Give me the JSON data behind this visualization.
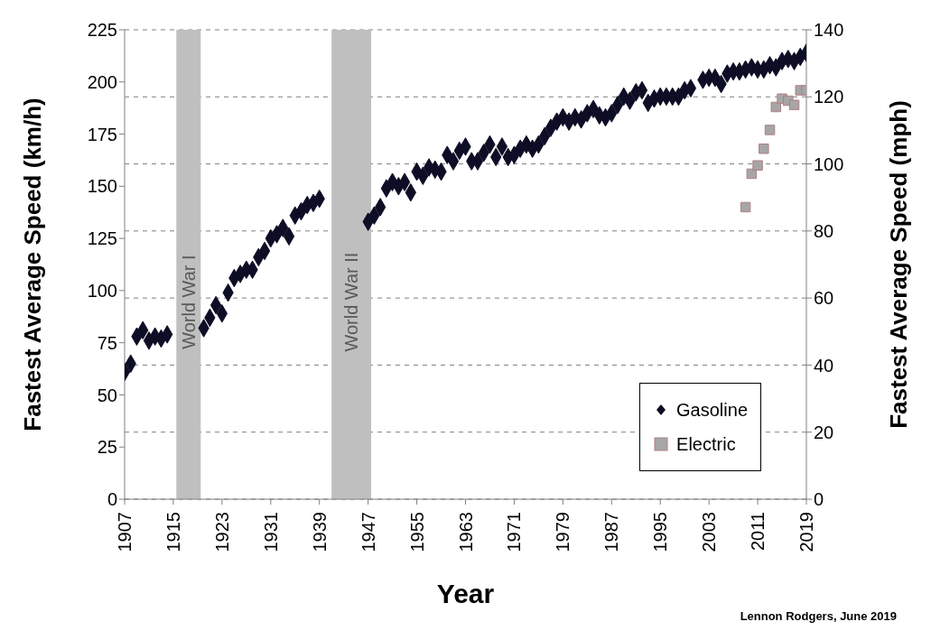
{
  "chart_data": {
    "type": "scatter",
    "xlabel": "Year",
    "ylabel": "Fastest Average Speed (km/h)",
    "y2label": "Fastest Average Speed (mph)",
    "xlim": [
      1907,
      2019
    ],
    "xticks": [
      1907,
      1915,
      1923,
      1931,
      1939,
      1947,
      1955,
      1963,
      1971,
      1979,
      1987,
      1995,
      2003,
      2011,
      2019
    ],
    "ylim": [
      0,
      225
    ],
    "yticks": [
      0,
      25,
      50,
      75,
      100,
      125,
      150,
      175,
      200,
      225
    ],
    "y2lim": [
      0,
      140
    ],
    "y2ticks": [
      0,
      20,
      40,
      60,
      80,
      100,
      120,
      140
    ],
    "grid": "y",
    "legend": "bottom right",
    "bands": [
      {
        "axis": "x",
        "from": 1915.5,
        "to": 1919.5,
        "label": "World War I",
        "color": "#bfbfbf"
      },
      {
        "axis": "x",
        "from": 1941,
        "to": 1947.5,
        "label": "World War II",
        "color": "#bfbfbf"
      }
    ],
    "annotations": [
      "Lennon Rodgers, June 2019"
    ],
    "series": [
      {
        "name": "Gasoline",
        "color": "#0d0d26",
        "marker": "diamond",
        "x": [
          1907,
          1908,
          1909,
          1910,
          1911,
          1912,
          1913,
          1914,
          1920,
          1921,
          1922,
          1923,
          1924,
          1925,
          1926,
          1927,
          1928,
          1929,
          1930,
          1931,
          1932,
          1933,
          1934,
          1935,
          1936,
          1937,
          1938,
          1939,
          1947,
          1948,
          1949,
          1950,
          1951,
          1952,
          1953,
          1954,
          1955,
          1956,
          1957,
          1958,
          1959,
          1960,
          1961,
          1962,
          1963,
          1964,
          1965,
          1966,
          1967,
          1968,
          1969,
          1970,
          1971,
          1972,
          1973,
          1974,
          1975,
          1976,
          1977,
          1978,
          1979,
          1980,
          1981,
          1982,
          1983,
          1984,
          1985,
          1986,
          1987,
          1988,
          1989,
          1990,
          1991,
          1992,
          1993,
          1994,
          1995,
          1996,
          1997,
          1998,
          1999,
          2000,
          2002,
          2003,
          2004,
          2005,
          2006,
          2007,
          2008,
          2009,
          2010,
          2011,
          2012,
          2013,
          2014,
          2015,
          2016,
          2017,
          2018,
          2019
        ],
        "values": [
          61,
          65,
          78,
          81,
          76,
          78,
          77,
          79,
          82,
          87,
          93,
          89,
          99,
          106,
          108,
          110,
          110,
          116,
          119,
          125,
          127,
          130,
          126,
          136,
          138,
          141,
          142,
          144,
          133,
          136,
          140,
          149,
          152,
          150,
          152,
          147,
          157,
          155,
          159,
          158,
          157,
          165,
          162,
          167,
          169,
          162,
          162,
          166,
          170,
          164,
          169,
          164,
          165,
          168,
          170,
          168,
          170,
          174,
          178,
          181,
          183,
          181,
          183,
          182,
          185,
          187,
          184,
          183,
          185,
          189,
          193,
          191,
          195,
          196,
          190,
          192,
          193,
          193,
          193,
          193,
          196,
          197,
          201,
          202,
          202,
          199,
          204,
          205,
          205,
          206,
          207,
          206,
          206,
          208,
          207,
          210,
          211,
          210,
          212,
          214
        ]
      },
      {
        "name": "Electric",
        "color": "#a6a6a6",
        "marker": "square",
        "x": [
          2009,
          2010,
          2011,
          2012,
          2013,
          2014,
          2015,
          2016,
          2017,
          2018,
          2019
        ],
        "values": [
          140,
          156,
          160,
          168,
          177,
          188,
          192,
          191,
          189,
          196,
          196
        ]
      }
    ]
  }
}
